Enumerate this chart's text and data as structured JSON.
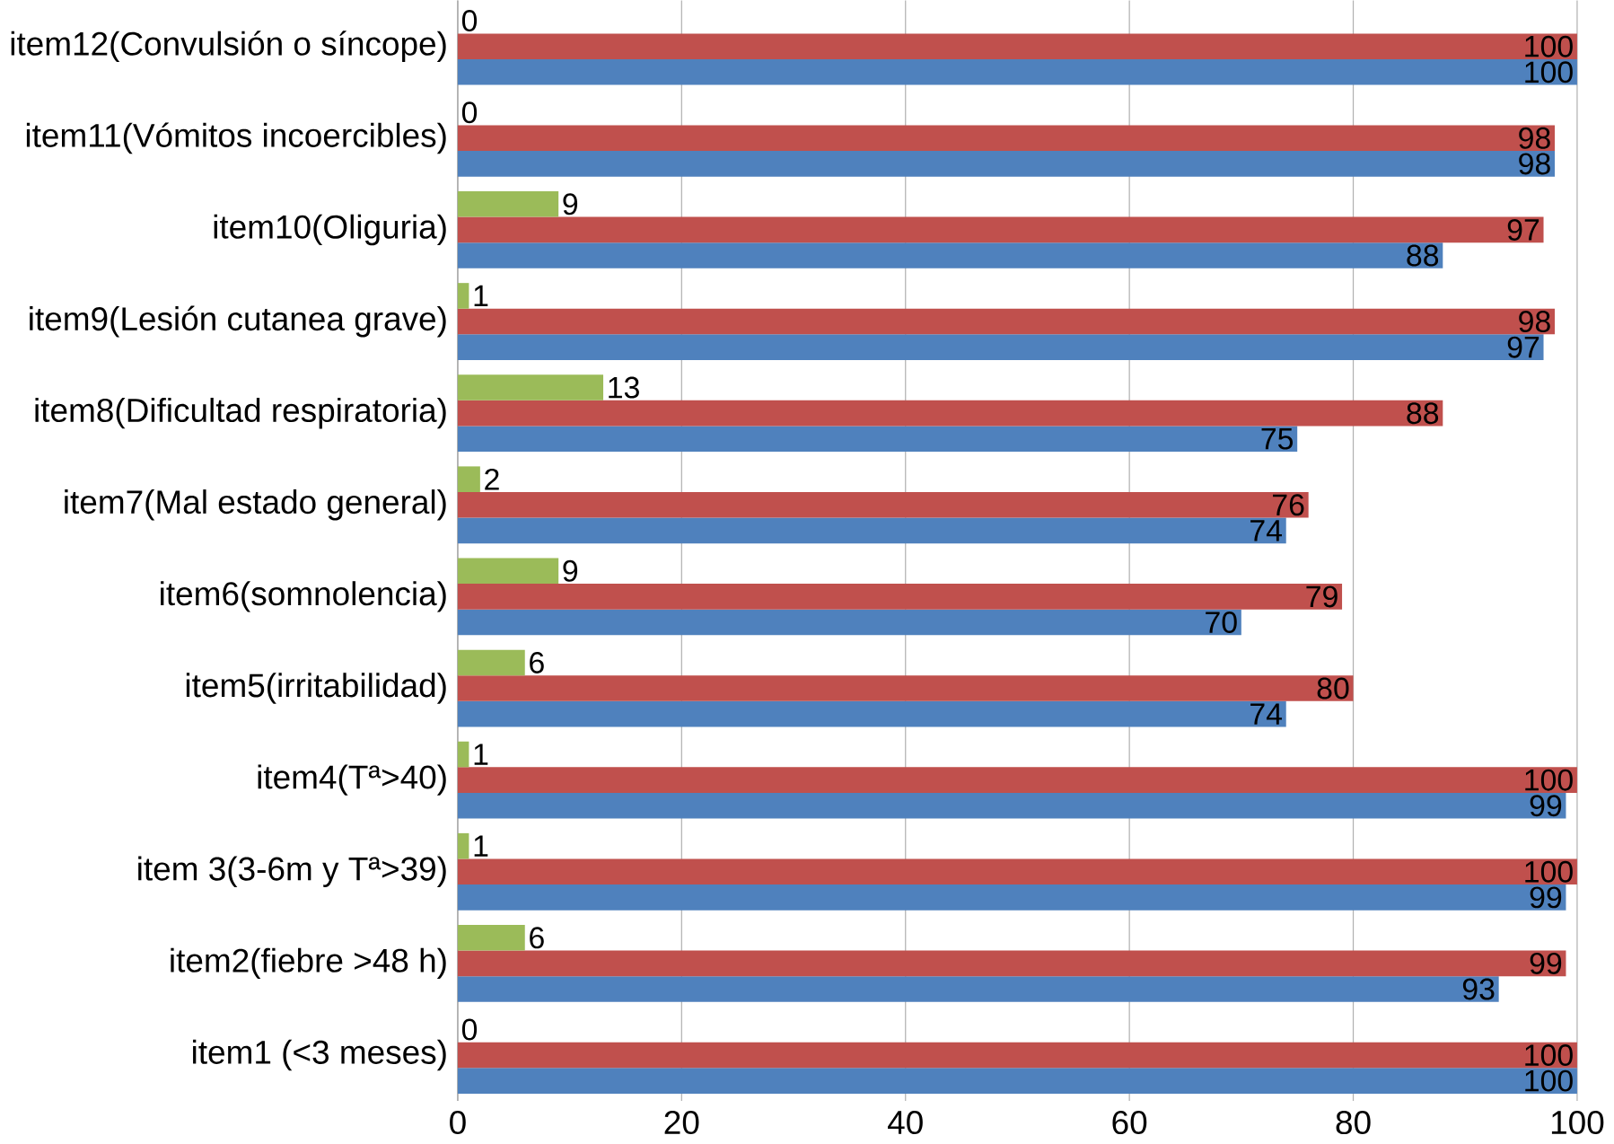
{
  "chart_data": {
    "type": "bar",
    "orientation": "horizontal",
    "categories": [
      "item12(Convulsión o síncope)",
      "item11(Vómitos incoercibles)",
      "item10(Oliguria)",
      "item9(Lesión cutanea grave)",
      "item8(Dificultad respiratoria)",
      "item7(Mal estado general)",
      "item6(somnolencia)",
      "item5(irritabilidad)",
      "item4(Tª>40)",
      "item 3(3-6m y Tª>39)",
      "item2(fiebre >48 h)",
      "item1 (<3 meses)"
    ],
    "series": [
      {
        "color": "#4f81bd",
        "values": [
          100,
          98,
          88,
          97,
          75,
          74,
          70,
          74,
          99,
          99,
          93,
          100
        ]
      },
      {
        "color": "#c0504d",
        "values": [
          100,
          98,
          97,
          98,
          88,
          76,
          79,
          80,
          100,
          100,
          99,
          100
        ]
      },
      {
        "color": "#9bbb59",
        "values": [
          0,
          0,
          9,
          1,
          13,
          2,
          9,
          6,
          1,
          1,
          6,
          0
        ]
      }
    ],
    "xlim": [
      0,
      100
    ],
    "xticks": [
      0,
      20,
      40,
      60,
      80,
      100
    ],
    "grid": "x",
    "data_labels": true
  }
}
